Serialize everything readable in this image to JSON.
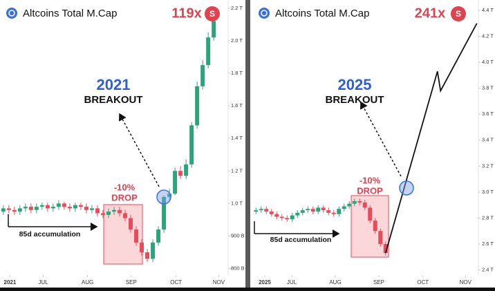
{
  "chart_data": [
    {
      "type": "candlestick",
      "title": "Altcoins Total M.Cap",
      "multiplier": "119x",
      "badge": "S",
      "breakout_year": "2021",
      "breakout_label": "BREAKOUT",
      "drop_pct": "-10%",
      "drop_label": "DROP",
      "accumulation_label": "85d accumulation",
      "up_color": "#2ea27a",
      "down_color": "#e54d5b",
      "open": [
        0.975,
        0.985,
        0.98,
        0.975,
        0.985,
        0.99,
        0.98,
        0.99,
        0.995,
        0.985,
        0.99,
        1.0,
        0.99,
        0.985,
        0.995,
        0.99,
        0.98,
        0.985,
        0.97,
        0.965,
        0.975,
        0.98,
        0.97,
        0.955,
        0.92,
        0.88,
        0.85,
        0.83,
        0.88,
        0.92,
        1.04,
        1.06,
        1.2,
        1.17,
        1.24,
        1.48,
        1.72,
        1.85,
        2.02
      ],
      "high": [
        0.995,
        0.995,
        0.99,
        0.995,
        1.0,
        1.0,
        1.0,
        1.005,
        1.005,
        1.0,
        1.02,
        1.01,
        1.0,
        1.005,
        1.005,
        1.0,
        0.995,
        0.995,
        0.98,
        0.985,
        0.99,
        0.99,
        0.98,
        0.965,
        0.93,
        0.89,
        0.86,
        0.89,
        0.93,
        1.05,
        1.09,
        1.22,
        1.23,
        1.27,
        1.5,
        1.75,
        1.88,
        2.05,
        2.16
      ],
      "low": [
        0.965,
        0.97,
        0.965,
        0.965,
        0.975,
        0.97,
        0.97,
        0.98,
        0.975,
        0.975,
        0.98,
        0.98,
        0.975,
        0.975,
        0.98,
        0.97,
        0.97,
        0.96,
        0.955,
        0.955,
        0.965,
        0.96,
        0.945,
        0.91,
        0.87,
        0.84,
        0.82,
        0.82,
        0.87,
        0.91,
        1.02,
        1.05,
        1.15,
        1.15,
        1.22,
        1.46,
        1.7,
        1.83,
        2.0
      ],
      "close": [
        0.985,
        0.98,
        0.975,
        0.985,
        0.99,
        0.98,
        0.99,
        0.995,
        0.985,
        0.99,
        1.0,
        0.99,
        0.985,
        0.995,
        0.99,
        0.98,
        0.985,
        0.97,
        0.965,
        0.975,
        0.98,
        0.97,
        0.955,
        0.92,
        0.88,
        0.85,
        0.83,
        0.88,
        0.92,
        1.04,
        1.06,
        1.2,
        1.17,
        1.24,
        1.48,
        1.72,
        1.85,
        2.02,
        2.12
      ],
      "ylim": [
        0.78,
        2.25
      ],
      "yticks": [
        {
          "value": 2.2,
          "label": "2.2 T"
        },
        {
          "value": 2.0,
          "label": "2.0 T"
        },
        {
          "value": 1.8,
          "label": "1.8 T"
        },
        {
          "value": 1.6,
          "label": "1.6 T"
        },
        {
          "value": 1.4,
          "label": "1.4 T"
        },
        {
          "value": 1.2,
          "label": "1.2 T"
        },
        {
          "value": 1.0,
          "label": "1.0 T"
        },
        {
          "value": 0.9,
          "label": "900 B"
        },
        {
          "value": 0.8,
          "label": "800 B"
        }
      ],
      "xlim": [
        -0.6,
        40.6
      ],
      "xticks": [
        {
          "value": 1.2,
          "label": "2021"
        },
        {
          "value": 7.2,
          "label": "JUL"
        },
        {
          "value": 15.2,
          "label": "AUG"
        },
        {
          "value": 23.1,
          "label": "SEP"
        },
        {
          "value": 31.2,
          "label": "OCT"
        },
        {
          "value": 38.9,
          "label": "NOV"
        }
      ]
    },
    {
      "type": "candlestick",
      "title": "Altcoins Total M.Cap",
      "multiplier": "241x",
      "badge": "S",
      "breakout_year": "2025",
      "breakout_label": "BREAKOUT",
      "drop_pct": "-10%",
      "drop_label": "DROP",
      "accumulation_label": "85d accumulation",
      "up_color": "#2ea27a",
      "down_color": "#e54d5b",
      "open": [
        2.85,
        2.86,
        2.87,
        2.85,
        2.83,
        2.81,
        2.8,
        2.79,
        2.82,
        2.84,
        2.86,
        2.87,
        2.85,
        2.88,
        2.86,
        2.84,
        2.83,
        2.87,
        2.89,
        2.91,
        2.93,
        2.92,
        2.88,
        2.78,
        2.7,
        2.6
      ],
      "high": [
        2.88,
        2.89,
        2.89,
        2.87,
        2.85,
        2.83,
        2.82,
        2.84,
        2.86,
        2.88,
        2.89,
        2.89,
        2.9,
        2.9,
        2.88,
        2.86,
        2.89,
        2.91,
        2.93,
        2.95,
        2.95,
        2.94,
        2.9,
        2.8,
        2.72,
        2.62
      ],
      "low": [
        2.83,
        2.84,
        2.83,
        2.81,
        2.79,
        2.78,
        2.77,
        2.77,
        2.8,
        2.82,
        2.84,
        2.83,
        2.83,
        2.84,
        2.82,
        2.81,
        2.81,
        2.85,
        2.87,
        2.89,
        2.9,
        2.86,
        2.76,
        2.68,
        2.58,
        2.51
      ],
      "close": [
        2.86,
        2.87,
        2.85,
        2.83,
        2.81,
        2.8,
        2.79,
        2.82,
        2.84,
        2.86,
        2.87,
        2.85,
        2.88,
        2.86,
        2.84,
        2.83,
        2.87,
        2.89,
        2.91,
        2.93,
        2.92,
        2.88,
        2.78,
        2.7,
        2.6,
        2.53
      ],
      "projection": {
        "color": "#111111",
        "x": [
          25,
          35,
          35.6,
          42.6
        ],
        "values": [
          2.53,
          3.93,
          3.78,
          4.3
        ]
      },
      "ylim": [
        2.36,
        4.48
      ],
      "yticks": [
        {
          "value": 4.4,
          "label": "4.4 T"
        },
        {
          "value": 4.2,
          "label": "4.2 T"
        },
        {
          "value": 4.0,
          "label": "4.0 T"
        },
        {
          "value": 3.8,
          "label": "3.8 T"
        },
        {
          "value": 3.6,
          "label": "3.6 T"
        },
        {
          "value": 3.4,
          "label": "3.4 T"
        },
        {
          "value": 3.2,
          "label": "3.2 T"
        },
        {
          "value": 3.0,
          "label": "3.0 T"
        },
        {
          "value": 2.8,
          "label": "2.8 T"
        },
        {
          "value": 2.6,
          "label": "2.6 T"
        },
        {
          "value": 2.4,
          "label": "2.4 T"
        }
      ],
      "xlim": [
        -1.1,
        42.9
      ],
      "xticks": [
        {
          "value": 1.7,
          "label": "2025"
        },
        {
          "value": 6.9,
          "label": "JUL"
        },
        {
          "value": 15.3,
          "label": "AUG"
        },
        {
          "value": 23.7,
          "label": "SEP"
        },
        {
          "value": 32.2,
          "label": "OCT"
        },
        {
          "value": 40.4,
          "label": "NOV"
        }
      ]
    }
  ]
}
